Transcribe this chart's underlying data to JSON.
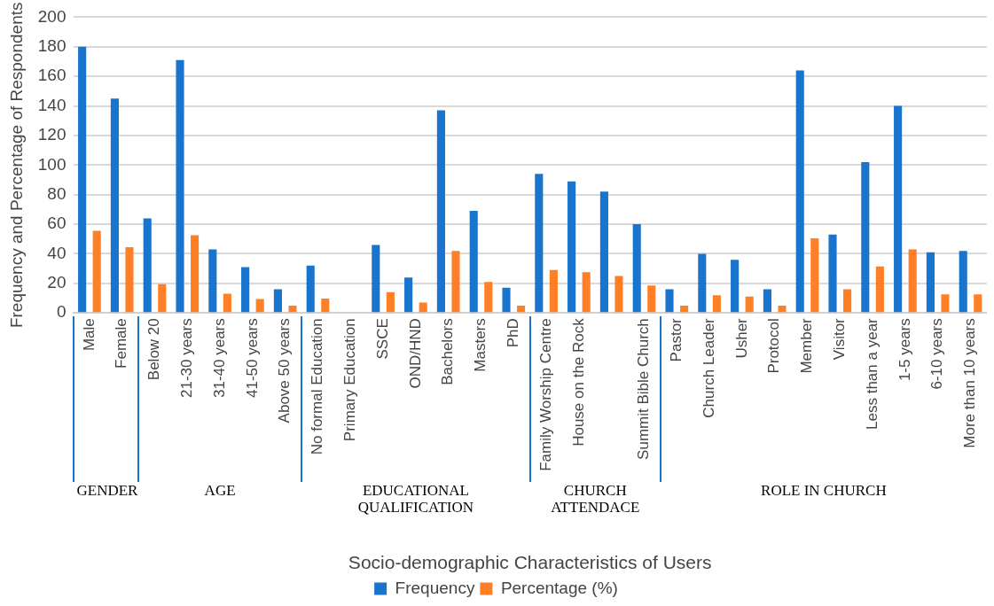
{
  "chart_data": {
    "type": "bar",
    "xlabel": "Socio-demographic Characteristics of Users",
    "ylabel": "Frequency and Percentage of Respondents",
    "categories": [
      "Male",
      "Female",
      "Below 20",
      "21-30 years",
      "31-40 years",
      "41-50 years",
      "Above 50 years",
      "No formal Education",
      "Primary Education",
      "SSCE",
      "OND/HND",
      "Bachelors",
      "Masters",
      "PhD",
      "Family Worship Centre",
      "House on the Rock",
      null,
      "Summit Bible Church",
      "Pastor",
      "Church Leader",
      "Usher",
      "Protocol",
      "Member",
      "Visitor",
      "Less than a year",
      "1-5 years",
      "6-10 years",
      "More than 10 years"
    ],
    "series": [
      {
        "name": "Frequency",
        "color": "#1874cd",
        "values": [
          180,
          145,
          64,
          171,
          43,
          31,
          16,
          32,
          0,
          46,
          24,
          137,
          69,
          17,
          94,
          89,
          82,
          60,
          16,
          40,
          36,
          16,
          164,
          53,
          102,
          140,
          41,
          42
        ]
      },
      {
        "name": "Percentage (%)",
        "color": "#ff7f27",
        "values": [
          55.5,
          44.5,
          19.5,
          52.5,
          13,
          9.5,
          5,
          9.8,
          0,
          14,
          7,
          42,
          21,
          5,
          29,
          27.5,
          25,
          18.5,
          5,
          12,
          11,
          5,
          50.5,
          16,
          31.5,
          43,
          12.5,
          12.5
        ]
      }
    ],
    "ylim": [
      0,
      200
    ],
    "yticks": [
      0,
      20,
      40,
      60,
      80,
      100,
      120,
      140,
      160,
      180,
      200
    ],
    "grid": "y",
    "legend": "bottom",
    "annotations": [
      "GENDER",
      "AGE",
      "EDUCATIONAL QUALIFICATION",
      "CHURCH ATTENDACE",
      "ROLE IN CHURCH"
    ]
  }
}
